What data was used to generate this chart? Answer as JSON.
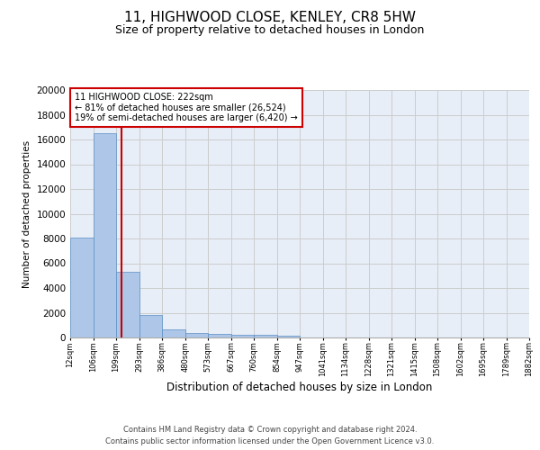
{
  "title": "11, HIGHWOOD CLOSE, KENLEY, CR8 5HW",
  "subtitle": "Size of property relative to detached houses in London",
  "xlabel": "Distribution of detached houses by size in London",
  "ylabel": "Number of detached properties",
  "footer_line1": "Contains HM Land Registry data © Crown copyright and database right 2024.",
  "footer_line2": "Contains public sector information licensed under the Open Government Licence v3.0.",
  "annotation_line1": "11 HIGHWOOD CLOSE: 222sqm",
  "annotation_line2": "← 81% of detached houses are smaller (26,524)",
  "annotation_line3": "19% of semi-detached houses are larger (6,420) →",
  "property_size_sqm": 222,
  "bin_edges": [
    12,
    106,
    199,
    293,
    386,
    480,
    573,
    667,
    760,
    854,
    947,
    1041,
    1134,
    1228,
    1321,
    1415,
    1508,
    1602,
    1695,
    1789,
    1882
  ],
  "bin_labels": [
    "12sqm",
    "106sqm",
    "199sqm",
    "293sqm",
    "386sqm",
    "480sqm",
    "573sqm",
    "667sqm",
    "760sqm",
    "854sqm",
    "947sqm",
    "1041sqm",
    "1134sqm",
    "1228sqm",
    "1321sqm",
    "1415sqm",
    "1508sqm",
    "1602sqm",
    "1695sqm",
    "1789sqm",
    "1882sqm"
  ],
  "bar_heights": [
    8100,
    16500,
    5300,
    1850,
    650,
    340,
    270,
    200,
    190,
    150,
    0,
    0,
    0,
    0,
    0,
    0,
    0,
    0,
    0,
    0
  ],
  "bar_color": "#aec6e8",
  "bar_edge_color": "#5a8fc3",
  "vline_color": "#cc0000",
  "vline_x": 222,
  "ylim": [
    0,
    20000
  ],
  "yticks": [
    0,
    2000,
    4000,
    6000,
    8000,
    10000,
    12000,
    14000,
    16000,
    18000,
    20000
  ],
  "grid_color": "#cccccc",
  "bg_color": "#e8eef8",
  "annotation_box_color": "#cc0000",
  "title_fontsize": 11,
  "subtitle_fontsize": 9,
  "footer_fontsize": 6
}
